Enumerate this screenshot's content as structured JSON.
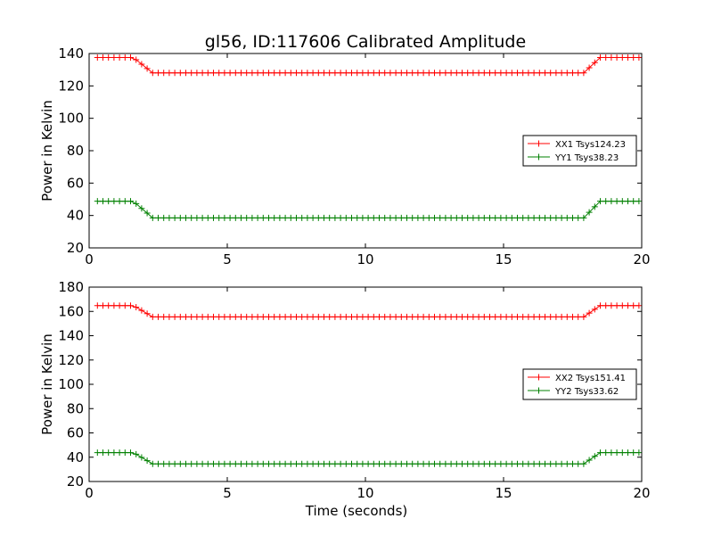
{
  "figure": {
    "title": "gl56, ID:117606 Calibrated Amplitude"
  },
  "chart_data": [
    {
      "type": "line",
      "title": "gl56, ID:117606 Calibrated Amplitude",
      "xlabel": "",
      "ylabel": "Power in Kelvin",
      "xlim": [
        0,
        20
      ],
      "ylim": [
        20,
        140
      ],
      "xticks": [
        "0",
        "5",
        "10",
        "15",
        "20"
      ],
      "yticks": [
        "20",
        "40",
        "60",
        "80",
        "100",
        "120",
        "140"
      ],
      "xtick_values": [
        0,
        5,
        10,
        15,
        20
      ],
      "ytick_values": [
        20,
        40,
        60,
        80,
        100,
        120,
        140
      ],
      "grid": false,
      "legend": "center-right",
      "series": [
        {
          "name": "XX1 Tsys124.23",
          "color": "#ff0000",
          "marker": "+",
          "base": 128,
          "edge": 137.5
        },
        {
          "name": "YY1 Tsys38.23",
          "color": "#008000",
          "marker": "+",
          "base": 38.5,
          "edge": 48.8
        }
      ]
    },
    {
      "type": "line",
      "title": "",
      "xlabel": "Time (seconds)",
      "ylabel": "Power in Kelvin",
      "xlim": [
        0,
        20
      ],
      "ylim": [
        20,
        180
      ],
      "xticks": [
        "0",
        "5",
        "10",
        "15",
        "20"
      ],
      "yticks": [
        "20",
        "40",
        "60",
        "80",
        "100",
        "120",
        "140",
        "160",
        "180"
      ],
      "xtick_values": [
        0,
        5,
        10,
        15,
        20
      ],
      "ytick_values": [
        20,
        40,
        60,
        80,
        100,
        120,
        140,
        160,
        180
      ],
      "grid": false,
      "legend": "center-right",
      "series": [
        {
          "name": "XX2 Tsys151.41",
          "color": "#ff0000",
          "marker": "+",
          "base": 155.5,
          "edge": 164.8
        },
        {
          "name": "YY2 Tsys33.62",
          "color": "#008000",
          "marker": "+",
          "base": 34.5,
          "edge": 43.8
        }
      ]
    }
  ]
}
